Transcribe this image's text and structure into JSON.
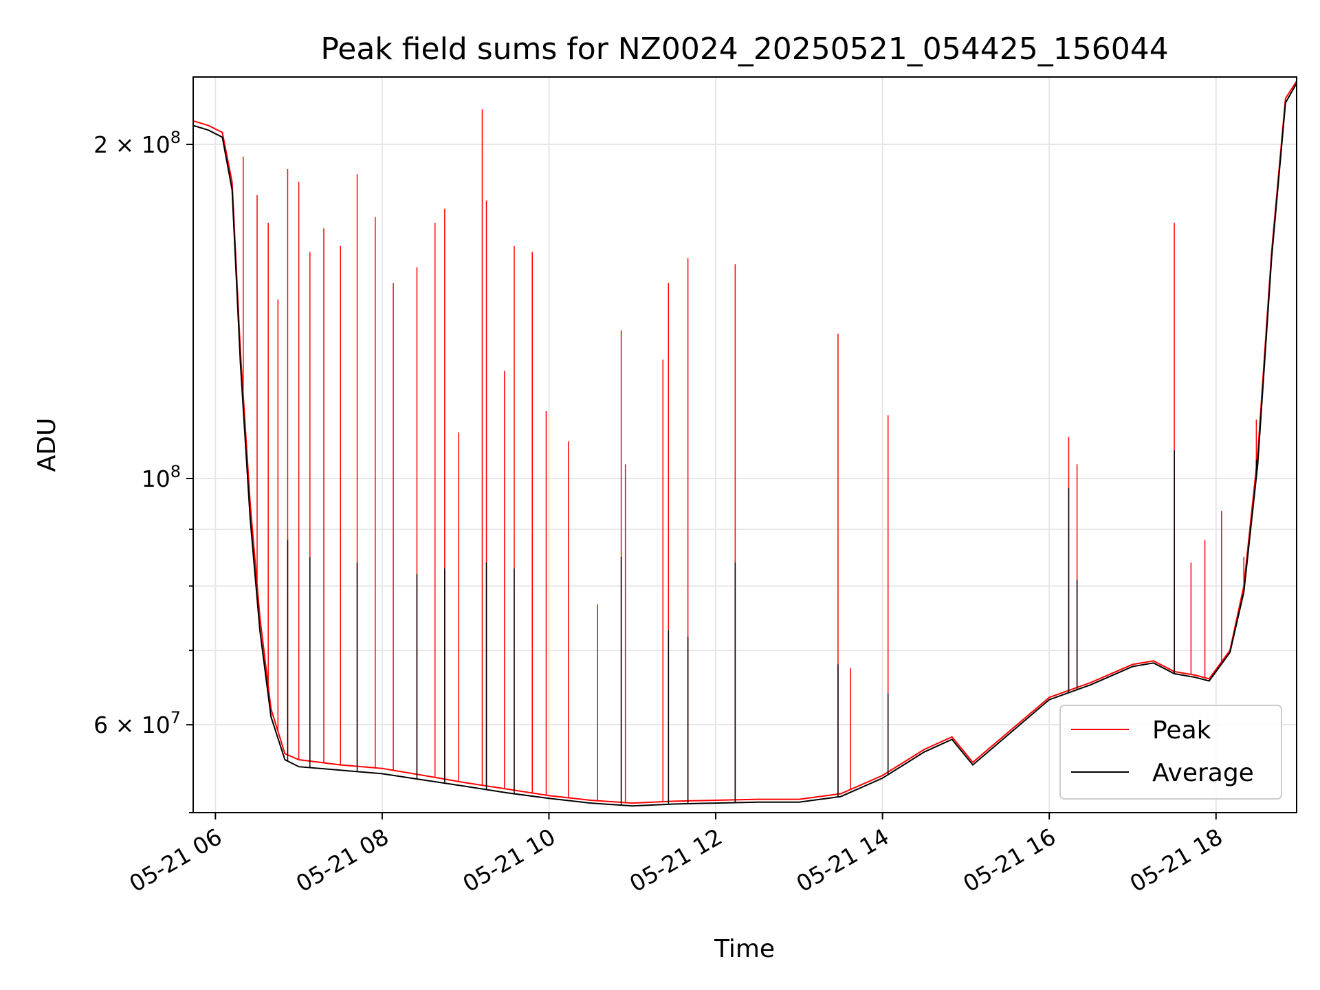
{
  "chart_data": {
    "type": "line",
    "title": "Peak field sums for NZ0024_20250521_054425_156044",
    "xlabel": "Time",
    "ylabel": "ADU",
    "x_is_time": true,
    "xlim": [
      "2025-05-21 05:44",
      "2025-05-21 18:58"
    ],
    "ylim": [
      50000000,
      230000000
    ],
    "yscale": "log",
    "grid": true,
    "legend_position": "lower-right",
    "x_ticks": [
      "05-21 06",
      "05-21 08",
      "05-21 10",
      "05-21 12",
      "05-21 14",
      "05-21 16",
      "05-21 18"
    ],
    "y_major_ticks": [
      {
        "label_base": "2 × 10",
        "label_exp": "8",
        "value": 200000000
      },
      {
        "label_base": "10",
        "label_exp": "8",
        "value": 100000000
      },
      {
        "label_base": "6 × 10",
        "label_exp": "7",
        "value": 60000000
      }
    ],
    "series": [
      {
        "name": "Peak",
        "color": "#ff0000",
        "x": [
          "2025-05-21 05:44",
          "2025-05-21 05:55",
          "2025-05-21 06:05",
          "2025-05-21 06:12",
          "2025-05-21 06:18",
          "2025-05-21 06:25",
          "2025-05-21 06:32",
          "2025-05-21 06:40",
          "2025-05-21 06:50",
          "2025-05-21 07:00",
          "2025-05-21 07:30",
          "2025-05-21 08:00",
          "2025-05-21 08:30",
          "2025-05-21 09:00",
          "2025-05-21 09:30",
          "2025-05-21 10:00",
          "2025-05-21 10:30",
          "2025-05-21 11:00",
          "2025-05-21 11:30",
          "2025-05-21 12:00",
          "2025-05-21 12:30",
          "2025-05-21 13:00",
          "2025-05-21 13:30",
          "2025-05-21 14:00",
          "2025-05-21 14:30",
          "2025-05-21 14:50",
          "2025-05-21 15:05",
          "2025-05-21 15:30",
          "2025-05-21 16:00",
          "2025-05-21 16:30",
          "2025-05-21 17:00",
          "2025-05-21 17:15",
          "2025-05-21 17:30",
          "2025-05-21 17:45",
          "2025-05-21 17:55",
          "2025-05-21 18:10",
          "2025-05-21 18:20",
          "2025-05-21 18:30",
          "2025-05-21 18:40",
          "2025-05-21 18:50",
          "2025-05-21 18:58"
        ],
        "y": [
          210000000,
          208000000,
          205000000,
          185000000,
          130000000,
          95000000,
          75000000,
          62000000,
          56500000,
          55800000,
          55200000,
          54800000,
          54000000,
          53200000,
          52500000,
          51800000,
          51300000,
          51000000,
          51200000,
          51300000,
          51400000,
          51400000,
          52000000,
          54000000,
          57000000,
          58500000,
          55500000,
          59000000,
          63500000,
          65500000,
          68000000,
          68500000,
          67000000,
          66500000,
          66000000,
          70000000,
          80000000,
          105000000,
          160000000,
          220000000,
          228000000
        ],
        "spikes": [
          {
            "x": "2025-05-21 06:20",
            "y": 195000000
          },
          {
            "x": "2025-05-21 06:30",
            "y": 180000000
          },
          {
            "x": "2025-05-21 06:38",
            "y": 170000000
          },
          {
            "x": "2025-05-21 06:45",
            "y": 145000000
          },
          {
            "x": "2025-05-21 06:52",
            "y": 190000000
          },
          {
            "x": "2025-05-21 07:00",
            "y": 185000000
          },
          {
            "x": "2025-05-21 07:08",
            "y": 160000000
          },
          {
            "x": "2025-05-21 07:18",
            "y": 168000000
          },
          {
            "x": "2025-05-21 07:30",
            "y": 162000000
          },
          {
            "x": "2025-05-21 07:42",
            "y": 188000000
          },
          {
            "x": "2025-05-21 07:55",
            "y": 172000000
          },
          {
            "x": "2025-05-21 08:08",
            "y": 150000000
          },
          {
            "x": "2025-05-21 08:25",
            "y": 155000000
          },
          {
            "x": "2025-05-21 08:38",
            "y": 170000000
          },
          {
            "x": "2025-05-21 08:45",
            "y": 175000000
          },
          {
            "x": "2025-05-21 08:55",
            "y": 110000000
          },
          {
            "x": "2025-05-21 09:12",
            "y": 215000000
          },
          {
            "x": "2025-05-21 09:15",
            "y": 178000000
          },
          {
            "x": "2025-05-21 09:28",
            "y": 125000000
          },
          {
            "x": "2025-05-21 09:35",
            "y": 162000000
          },
          {
            "x": "2025-05-21 09:48",
            "y": 160000000
          },
          {
            "x": "2025-05-21 09:58",
            "y": 115000000
          },
          {
            "x": "2025-05-21 10:14",
            "y": 108000000
          },
          {
            "x": "2025-05-21 10:35",
            "y": 77000000
          },
          {
            "x": "2025-05-21 10:52",
            "y": 136000000
          },
          {
            "x": "2025-05-21 10:55",
            "y": 103000000
          },
          {
            "x": "2025-05-21 11:22",
            "y": 128000000
          },
          {
            "x": "2025-05-21 11:26",
            "y": 150000000
          },
          {
            "x": "2025-05-21 11:40",
            "y": 158000000
          },
          {
            "x": "2025-05-21 12:14",
            "y": 156000000
          },
          {
            "x": "2025-05-21 13:28",
            "y": 135000000
          },
          {
            "x": "2025-05-21 13:37",
            "y": 67500000
          },
          {
            "x": "2025-05-21 14:04",
            "y": 114000000
          },
          {
            "x": "2025-05-21 16:14",
            "y": 109000000
          },
          {
            "x": "2025-05-21 16:20",
            "y": 103000000
          },
          {
            "x": "2025-05-21 17:30",
            "y": 170000000
          },
          {
            "x": "2025-05-21 17:42",
            "y": 84000000
          },
          {
            "x": "2025-05-21 17:52",
            "y": 88000000
          },
          {
            "x": "2025-05-21 18:04",
            "y": 93500000
          },
          {
            "x": "2025-05-21 18:20",
            "y": 85000000
          },
          {
            "x": "2025-05-21 18:29",
            "y": 113000000
          }
        ]
      },
      {
        "name": "Average",
        "color": "#000000",
        "x": [
          "2025-05-21 05:44",
          "2025-05-21 05:55",
          "2025-05-21 06:05",
          "2025-05-21 06:12",
          "2025-05-21 06:18",
          "2025-05-21 06:25",
          "2025-05-21 06:32",
          "2025-05-21 06:40",
          "2025-05-21 06:50",
          "2025-05-21 07:00",
          "2025-05-21 07:30",
          "2025-05-21 08:00",
          "2025-05-21 08:30",
          "2025-05-21 09:00",
          "2025-05-21 09:30",
          "2025-05-21 10:00",
          "2025-05-21 10:30",
          "2025-05-21 11:00",
          "2025-05-21 11:30",
          "2025-05-21 12:00",
          "2025-05-21 12:30",
          "2025-05-21 13:00",
          "2025-05-21 13:30",
          "2025-05-21 14:00",
          "2025-05-21 14:30",
          "2025-05-21 14:50",
          "2025-05-21 15:05",
          "2025-05-21 15:30",
          "2025-05-21 16:00",
          "2025-05-21 16:30",
          "2025-05-21 17:00",
          "2025-05-21 17:15",
          "2025-05-21 17:30",
          "2025-05-21 17:45",
          "2025-05-21 17:55",
          "2025-05-21 18:10",
          "2025-05-21 18:20",
          "2025-05-21 18:30",
          "2025-05-21 18:40",
          "2025-05-21 18:50",
          "2025-05-21 18:58"
        ],
        "y": [
          208000000,
          206000000,
          203000000,
          182000000,
          127000000,
          92000000,
          73000000,
          61000000,
          55800000,
          55000000,
          54600000,
          54200000,
          53500000,
          52800000,
          52100000,
          51500000,
          51000000,
          50700000,
          50900000,
          51000000,
          51100000,
          51100000,
          51700000,
          53700000,
          56700000,
          58200000,
          55200000,
          58700000,
          63200000,
          65200000,
          67700000,
          68200000,
          66700000,
          66200000,
          65700000,
          69700000,
          79000000,
          103000000,
          158000000,
          218000000,
          227000000
        ],
        "spikes": [
          {
            "x": "2025-05-21 06:52",
            "y": 88000000
          },
          {
            "x": "2025-05-21 07:08",
            "y": 85000000
          },
          {
            "x": "2025-05-21 07:42",
            "y": 84000000
          },
          {
            "x": "2025-05-21 08:25",
            "y": 82000000
          },
          {
            "x": "2025-05-21 08:45",
            "y": 83000000
          },
          {
            "x": "2025-05-21 09:15",
            "y": 84000000
          },
          {
            "x": "2025-05-21 09:35",
            "y": 83000000
          },
          {
            "x": "2025-05-21 10:52",
            "y": 85000000
          },
          {
            "x": "2025-05-21 11:26",
            "y": 73000000
          },
          {
            "x": "2025-05-21 11:40",
            "y": 72000000
          },
          {
            "x": "2025-05-21 12:14",
            "y": 84000000
          },
          {
            "x": "2025-05-21 13:28",
            "y": 68000000
          },
          {
            "x": "2025-05-21 14:04",
            "y": 64000000
          },
          {
            "x": "2025-05-21 16:14",
            "y": 98000000
          },
          {
            "x": "2025-05-21 16:20",
            "y": 81000000
          },
          {
            "x": "2025-05-21 17:30",
            "y": 106000000
          },
          {
            "x": "2025-05-21 18:29",
            "y": 104000000
          }
        ]
      }
    ]
  }
}
